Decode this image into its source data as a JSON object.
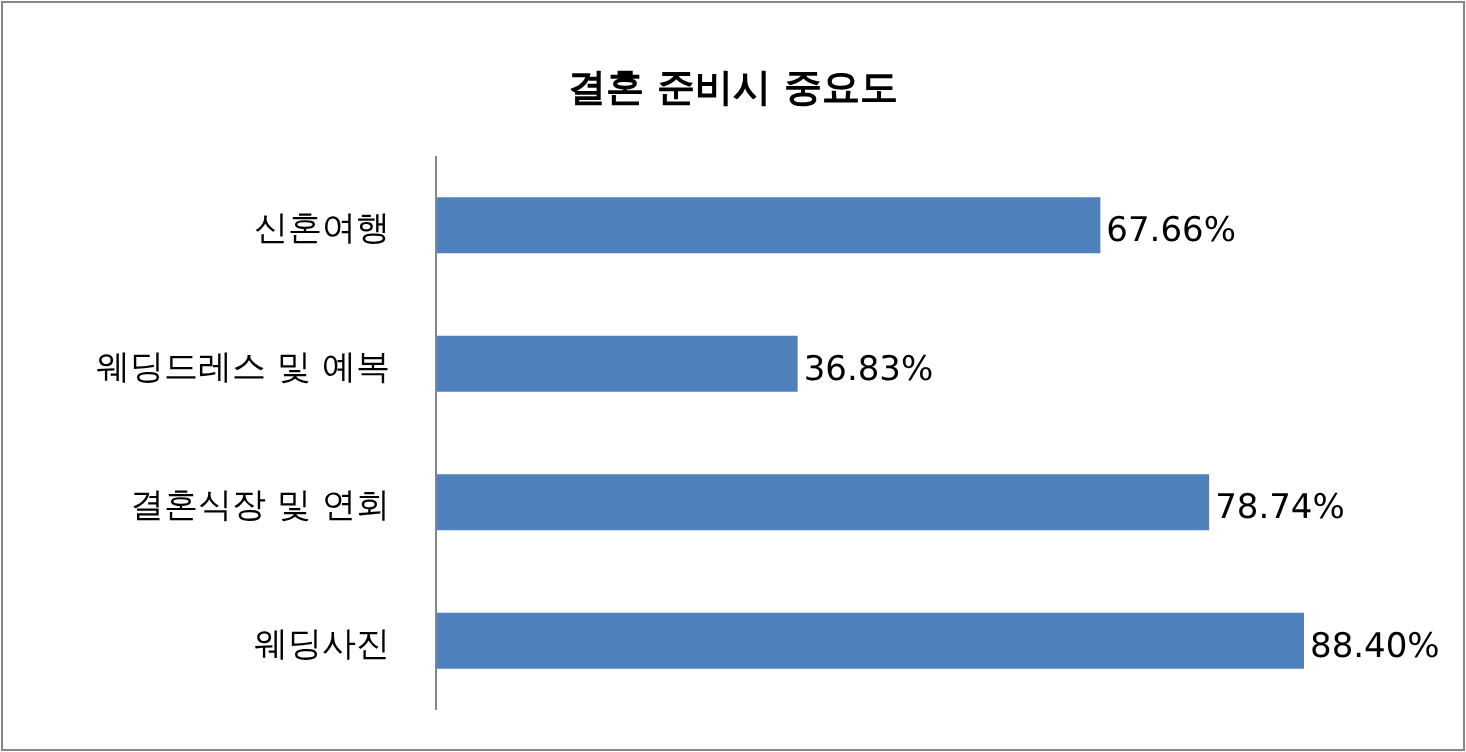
{
  "chart_data": {
    "type": "bar",
    "orientation": "horizontal",
    "title": "결혼 준비시 중요도",
    "categories": [
      "신혼여행",
      "웨딩드레스 및 예복",
      "결혼식장 및 연회",
      "웨딩사진"
    ],
    "values": [
      67.66,
      36.83,
      78.74,
      88.4
    ],
    "value_labels": [
      "67.66%",
      "36.83%",
      "78.74%",
      "88.40%"
    ],
    "color": "#4f81bd"
  }
}
